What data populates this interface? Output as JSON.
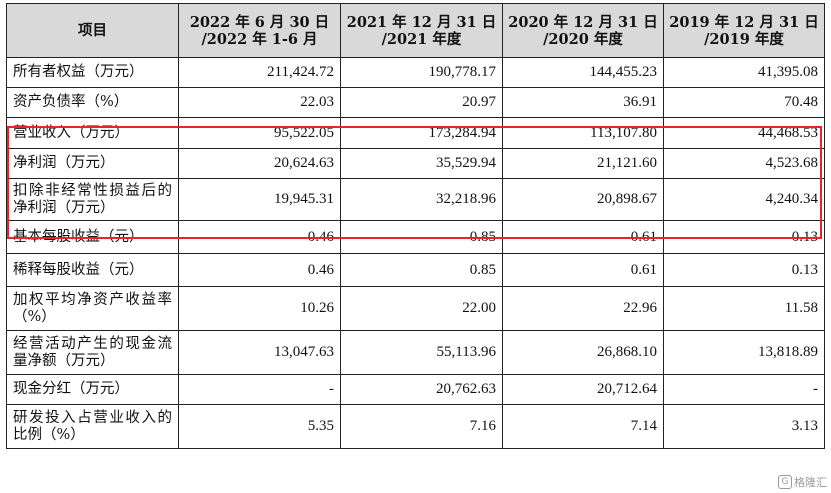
{
  "table": {
    "headers": [
      "项目",
      "2022 年 6 月 30 日\n/2022 年 1-6 月",
      "2021 年 12 月 31 日\n/2021 年度",
      "2020 年 12 月 31 日\n/2020 年度",
      "2019 年 12 月 31 日\n/2019 年度"
    ],
    "rows": [
      {
        "label": "所有者权益（万元）",
        "values": [
          "211,424.72",
          "190,778.17",
          "144,455.23",
          "41,395.08"
        ]
      },
      {
        "label": "资产负债率（%）",
        "values": [
          "22.03",
          "20.97",
          "36.91",
          "70.48"
        ]
      },
      {
        "label": "营业收入（万元）",
        "values": [
          "95,522.05",
          "173,284.94",
          "113,107.80",
          "44,468.53"
        ],
        "highlighted": true
      },
      {
        "label": "净利润（万元）",
        "values": [
          "20,624.63",
          "35,529.94",
          "21,121.60",
          "4,523.68"
        ],
        "highlighted": true
      },
      {
        "label": "扣除非经常性损益后的净利润（万元）",
        "values": [
          "19,945.31",
          "32,218.96",
          "20,898.67",
          "4,240.34"
        ],
        "highlighted": true
      },
      {
        "label": "基本每股收益（元）",
        "values": [
          "0.46",
          "0.85",
          "0.61",
          "0.13"
        ]
      },
      {
        "label": "稀释每股收益（元）",
        "values": [
          "0.46",
          "0.85",
          "0.61",
          "0.13"
        ]
      },
      {
        "label": "加权平均净资产收益率（%）",
        "values": [
          "10.26",
          "22.00",
          "22.96",
          "11.58"
        ]
      },
      {
        "label": "经营活动产生的现金流量净额（万元）",
        "values": [
          "13,047.63",
          "55,113.96",
          "26,868.10",
          "13,818.89"
        ]
      },
      {
        "label": "现金分红（万元）",
        "values": [
          "-",
          "20,762.63",
          "20,712.64",
          "-"
        ]
      },
      {
        "label": "研发投入占营业收入的比例（%）",
        "values": [
          "5.35",
          "7.16",
          "7.14",
          "3.13"
        ]
      }
    ]
  },
  "highlight": {
    "color": "#e8232b"
  },
  "watermark": {
    "text": "格隆汇",
    "icon": "logo-G-icon"
  }
}
